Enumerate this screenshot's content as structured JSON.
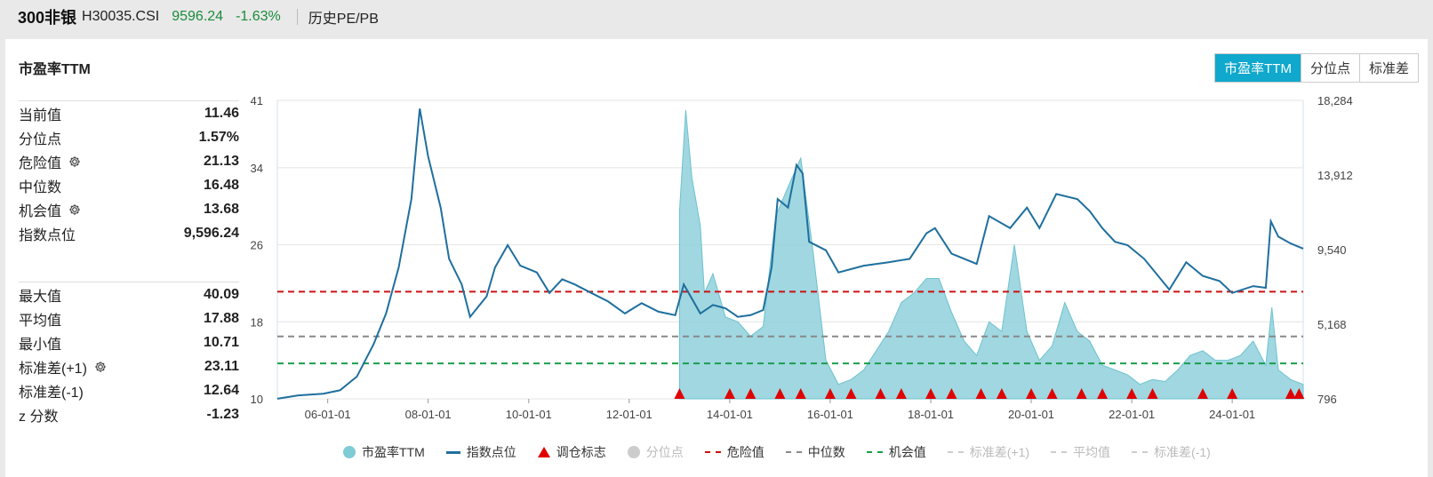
{
  "header": {
    "name": "300非银",
    "code": "H30035.CSI",
    "price": "9596.24",
    "change": "-1.63%",
    "link": "历史PE/PB"
  },
  "card": {
    "title": "市盈率TTM",
    "tabs": [
      "市盈率TTM",
      "分位点",
      "标准差"
    ],
    "active_tab": "市盈率TTM"
  },
  "stats_top": [
    {
      "label": "当前值",
      "value": "11.46",
      "gear": false
    },
    {
      "label": "分位点",
      "value": "1.57%",
      "gear": false
    },
    {
      "label": "危险值",
      "value": "21.13",
      "gear": true
    },
    {
      "label": "中位数",
      "value": "16.48",
      "gear": false
    },
    {
      "label": "机会值",
      "value": "13.68",
      "gear": true
    },
    {
      "label": "指数点位",
      "value": "9,596.24",
      "gear": false
    }
  ],
  "stats_bottom": [
    {
      "label": "最大值",
      "value": "40.09",
      "gear": false
    },
    {
      "label": "平均值",
      "value": "17.88",
      "gear": false
    },
    {
      "label": "最小值",
      "value": "10.71",
      "gear": false
    },
    {
      "label": "标准差(+1)",
      "value": "23.11",
      "gear": true
    },
    {
      "label": "标准差(-1)",
      "value": "12.64",
      "gear": false
    },
    {
      "label": "z 分数",
      "value": "-1.23",
      "gear": false
    }
  ],
  "legend": [
    {
      "label": "市盈率TTM",
      "kind": "circle",
      "color": "#7fcbd6",
      "on": true
    },
    {
      "label": "指数点位",
      "kind": "line",
      "color": "#1f6f9e",
      "on": true
    },
    {
      "label": "调仓标志",
      "kind": "tri",
      "color": "#e00000",
      "on": true
    },
    {
      "label": "分位点",
      "kind": "circle",
      "color": "#cccccc",
      "on": false
    },
    {
      "label": "危险值",
      "kind": "dash",
      "color": "#cc1111",
      "on": true
    },
    {
      "label": "中位数",
      "kind": "dash",
      "color": "#888888",
      "on": true
    },
    {
      "label": "机会值",
      "kind": "dash",
      "color": "#1a9e4a",
      "on": true
    },
    {
      "label": "标准差(+1)",
      "kind": "dash",
      "color": "#cccccc",
      "on": false
    },
    {
      "label": "平均值",
      "kind": "dash",
      "color": "#cccccc",
      "on": false
    },
    {
      "label": "标准差(-1)",
      "kind": "dash",
      "color": "#cccccc",
      "on": false
    }
  ],
  "chart_data": {
    "type": "line",
    "x_range": [
      "2004-12-31",
      "2025-05-31"
    ],
    "x_ticks": [
      "06-01-01",
      "08-01-01",
      "10-01-01",
      "12-01-01",
      "14-01-01",
      "16-01-01",
      "18-01-01",
      "20-01-01",
      "22-01-01",
      "24-01-01"
    ],
    "x_tick_dates": [
      "2006-01-01",
      "2008-01-01",
      "2010-01-01",
      "2012-01-01",
      "2014-01-01",
      "2016-01-01",
      "2018-01-01",
      "2020-01-01",
      "2022-01-01",
      "2024-01-01"
    ],
    "y_left_ticks": [
      "10",
      "18",
      "26",
      "34",
      "41"
    ],
    "y_left_range": [
      10,
      41
    ],
    "y_right_ticks": [
      "796",
      "5,168",
      "9,540",
      "13,912",
      "18,284"
    ],
    "y_right_range": [
      796,
      18284
    ],
    "ref_lines": [
      {
        "name": "危险值",
        "value": 21.13,
        "color": "#cc1111"
      },
      {
        "name": "中位数",
        "value": 16.48,
        "color": "#888888"
      },
      {
        "name": "机会值",
        "value": 13.68,
        "color": "#1a9e4a"
      }
    ],
    "pe_series": {
      "name": "市盈率TTM",
      "points": [
        [
          "2013-01-01",
          29.5
        ],
        [
          "2013-02-15",
          40.0
        ],
        [
          "2013-04-01",
          33.0
        ],
        [
          "2013-06-01",
          28.0
        ],
        [
          "2013-07-01",
          21.0
        ],
        [
          "2013-09-01",
          23.0
        ],
        [
          "2013-12-01",
          18.5
        ],
        [
          "2014-03-01",
          18.0
        ],
        [
          "2014-06-01",
          16.5
        ],
        [
          "2014-09-01",
          17.5
        ],
        [
          "2014-12-01",
          29.0
        ],
        [
          "2015-03-01",
          32.0
        ],
        [
          "2015-06-01",
          35.0
        ],
        [
          "2015-09-01",
          25.0
        ],
        [
          "2015-12-01",
          14.0
        ],
        [
          "2016-03-01",
          11.5
        ],
        [
          "2016-06-01",
          12.0
        ],
        [
          "2016-09-01",
          13.0
        ],
        [
          "2016-12-01",
          15.0
        ],
        [
          "2017-03-01",
          17.0
        ],
        [
          "2017-06-01",
          20.0
        ],
        [
          "2017-09-01",
          21.0
        ],
        [
          "2017-12-01",
          22.5
        ],
        [
          "2018-03-01",
          22.5
        ],
        [
          "2018-06-01",
          19.0
        ],
        [
          "2018-09-01",
          16.0
        ],
        [
          "2018-12-01",
          14.5
        ],
        [
          "2019-03-01",
          18.0
        ],
        [
          "2019-06-01",
          17.0
        ],
        [
          "2019-09-01",
          26.0
        ],
        [
          "2019-12-01",
          17.0
        ],
        [
          "2020-03-01",
          14.0
        ],
        [
          "2020-06-01",
          15.5
        ],
        [
          "2020-09-01",
          20.0
        ],
        [
          "2020-12-01",
          17.0
        ],
        [
          "2021-03-01",
          16.0
        ],
        [
          "2021-06-01",
          13.5
        ],
        [
          "2021-09-01",
          13.0
        ],
        [
          "2021-12-01",
          12.5
        ],
        [
          "2022-03-01",
          11.5
        ],
        [
          "2022-06-01",
          12.0
        ],
        [
          "2022-09-01",
          11.8
        ],
        [
          "2022-12-01",
          13.0
        ],
        [
          "2023-03-01",
          14.5
        ],
        [
          "2023-06-01",
          15.0
        ],
        [
          "2023-09-01",
          14.0
        ],
        [
          "2023-12-01",
          14.0
        ],
        [
          "2024-03-01",
          14.5
        ],
        [
          "2024-06-01",
          16.0
        ],
        [
          "2024-09-01",
          13.5
        ],
        [
          "2024-10-15",
          19.5
        ],
        [
          "2024-12-01",
          13.0
        ],
        [
          "2025-03-01",
          12.0
        ],
        [
          "2025-05-31",
          11.5
        ]
      ]
    },
    "index_series": {
      "name": "指数点位",
      "points": [
        [
          "2004-12-31",
          800
        ],
        [
          "2005-06-01",
          1000
        ],
        [
          "2005-12-01",
          1100
        ],
        [
          "2006-04-01",
          1300
        ],
        [
          "2006-08-01",
          2100
        ],
        [
          "2006-12-01",
          4000
        ],
        [
          "2007-03-01",
          5800
        ],
        [
          "2007-06-01",
          8500
        ],
        [
          "2007-09-01",
          12500
        ],
        [
          "2007-11-01",
          17800
        ],
        [
          "2008-01-01",
          15000
        ],
        [
          "2008-04-01",
          12000
        ],
        [
          "2008-06-01",
          9000
        ],
        [
          "2008-09-01",
          7500
        ],
        [
          "2008-11-01",
          5600
        ],
        [
          "2009-03-01",
          6800
        ],
        [
          "2009-05-01",
          8500
        ],
        [
          "2009-08-01",
          9800
        ],
        [
          "2009-11-01",
          8600
        ],
        [
          "2010-03-01",
          8200
        ],
        [
          "2010-06-01",
          7000
        ],
        [
          "2010-09-01",
          7800
        ],
        [
          "2010-12-01",
          7500
        ],
        [
          "2011-04-01",
          7000
        ],
        [
          "2011-08-01",
          6500
        ],
        [
          "2011-12-01",
          5800
        ],
        [
          "2012-04-01",
          6400
        ],
        [
          "2012-08-01",
          5900
        ],
        [
          "2012-12-01",
          5700
        ],
        [
          "2013-02-01",
          7500
        ],
        [
          "2013-06-01",
          5800
        ],
        [
          "2013-09-01",
          6300
        ],
        [
          "2013-12-01",
          6100
        ],
        [
          "2014-03-01",
          5600
        ],
        [
          "2014-06-01",
          5700
        ],
        [
          "2014-09-01",
          6000
        ],
        [
          "2014-11-01",
          8500
        ],
        [
          "2014-12-15",
          12500
        ],
        [
          "2015-03-01",
          12000
        ],
        [
          "2015-05-01",
          14500
        ],
        [
          "2015-06-15",
          14000
        ],
        [
          "2015-08-01",
          10000
        ],
        [
          "2015-12-01",
          9500
        ],
        [
          "2016-03-01",
          8200
        ],
        [
          "2016-09-01",
          8600
        ],
        [
          "2017-03-01",
          8800
        ],
        [
          "2017-08-01",
          9000
        ],
        [
          "2017-12-01",
          10500
        ],
        [
          "2018-02-01",
          10800
        ],
        [
          "2018-06-01",
          9300
        ],
        [
          "2018-12-01",
          8700
        ],
        [
          "2019-03-01",
          11500
        ],
        [
          "2019-08-01",
          10800
        ],
        [
          "2019-12-01",
          12000
        ],
        [
          "2020-03-01",
          10800
        ],
        [
          "2020-07-01",
          12800
        ],
        [
          "2020-12-01",
          12500
        ],
        [
          "2021-03-01",
          11800
        ],
        [
          "2021-06-01",
          10800
        ],
        [
          "2021-09-01",
          10000
        ],
        [
          "2021-12-01",
          9800
        ],
        [
          "2022-04-01",
          9000
        ],
        [
          "2022-10-01",
          7200
        ],
        [
          "2023-02-01",
          8800
        ],
        [
          "2023-06-01",
          8000
        ],
        [
          "2023-10-01",
          7700
        ],
        [
          "2024-01-01",
          7000
        ],
        [
          "2024-06-01",
          7400
        ],
        [
          "2024-09-01",
          7300
        ],
        [
          "2024-10-08",
          11200
        ],
        [
          "2024-12-01",
          10300
        ],
        [
          "2025-03-01",
          9900
        ],
        [
          "2025-05-31",
          9596
        ]
      ]
    },
    "markers": {
      "name": "调仓标志",
      "dates": [
        "2013-01-01",
        "2014-01-01",
        "2014-06-01",
        "2015-01-01",
        "2015-06-01",
        "2016-01-01",
        "2016-06-01",
        "2017-01-01",
        "2017-06-01",
        "2018-01-01",
        "2018-06-01",
        "2019-01-01",
        "2019-06-01",
        "2020-01-01",
        "2020-06-01",
        "2021-01-01",
        "2021-06-01",
        "2022-01-01",
        "2022-06-01",
        "2023-06-01",
        "2024-01-01",
        "2025-03-01",
        "2025-05-01"
      ]
    }
  }
}
